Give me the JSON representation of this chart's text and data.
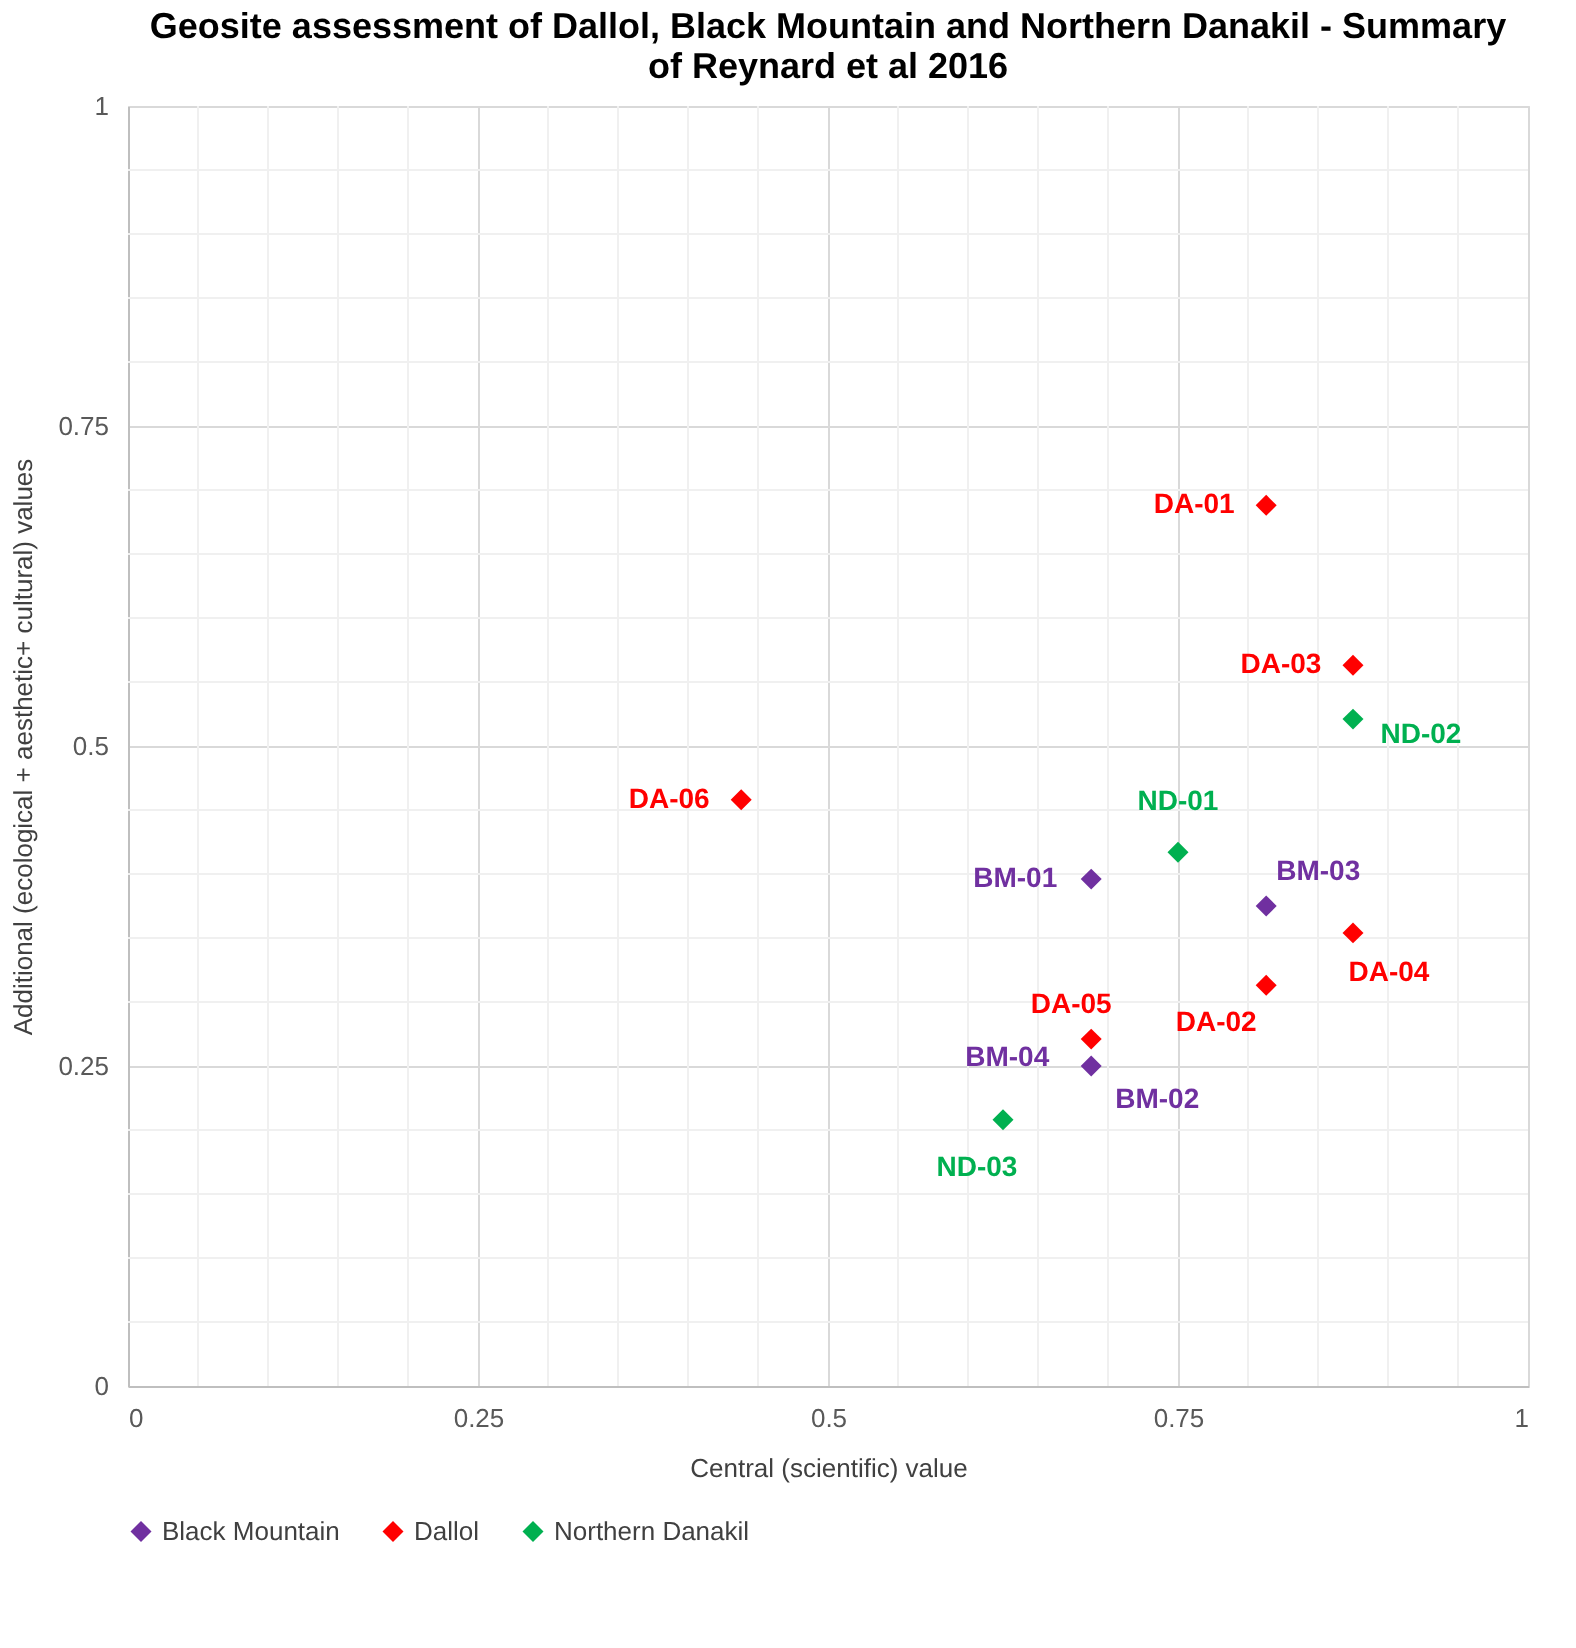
{
  "chart_data": {
    "type": "scatter",
    "title": "Geosite assessment of Dallol, Black Mountain and Northern Danakil - Summary of Reynard et al 2016",
    "xlabel": "Central (scientific) value",
    "ylabel": "Additional (ecological + aesthetic+ cultural) values",
    "series": [
      {
        "name": "Black Mountain",
        "color": "#7030a0",
        "x": [
          0.688,
          0.688,
          0.813
        ],
        "values": [
          0.396,
          0.25,
          0.375
        ]
      },
      {
        "name": "Dallol",
        "color": "#ff0000",
        "x": [
          0.813,
          0.813,
          0.875,
          0.875,
          0.688,
          0.438
        ],
        "values": [
          0.688,
          0.313,
          0.563,
          0.354,
          0.271,
          0.458
        ]
      },
      {
        "name": "Northern Danakil",
        "color": "#00b050",
        "x": [
          0.75,
          0.875,
          0.625
        ],
        "values": [
          0.417,
          0.521,
          0.208
        ]
      }
    ],
    "annotations": [
      {
        "text": "BM-01",
        "x": 0.688,
        "y": 0.396
      },
      {
        "text": "BM-02",
        "x": 0.688,
        "y": 0.25
      },
      {
        "text": "BM-03",
        "x": 0.813,
        "y": 0.375
      },
      {
        "text": "BM-04",
        "x": 0.688,
        "y": 0.25
      },
      {
        "text": "DA-01",
        "x": 0.813,
        "y": 0.688
      },
      {
        "text": "DA-02",
        "x": 0.813,
        "y": 0.313
      },
      {
        "text": "DA-03",
        "x": 0.875,
        "y": 0.563
      },
      {
        "text": "DA-04",
        "x": 0.875,
        "y": 0.354
      },
      {
        "text": "DA-05",
        "x": 0.688,
        "y": 0.271
      },
      {
        "text": "DA-06",
        "x": 0.438,
        "y": 0.458
      },
      {
        "text": "ND-01",
        "x": 0.75,
        "y": 0.417
      },
      {
        "text": "ND-02",
        "x": 0.875,
        "y": 0.521
      },
      {
        "text": "ND-03",
        "x": 0.625,
        "y": 0.208
      }
    ],
    "xlim": [
      0,
      1
    ],
    "ylim": [
      0,
      1
    ],
    "xticks": [
      0,
      0.25,
      0.5,
      0.75,
      1
    ],
    "yticks": [
      0,
      0.25,
      0.5,
      0.75,
      1
    ],
    "grid": true,
    "legend": "bottom",
    "marker": "diamond"
  }
}
